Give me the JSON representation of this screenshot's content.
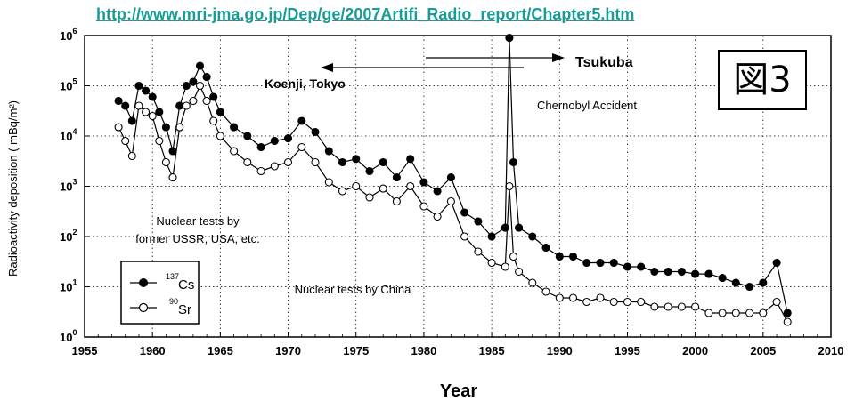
{
  "source_url": "http://www.mri-jma.go.jp/Dep/ge/2007Artifi_Radio_report/Chapter5.htm",
  "figure_label": "図3",
  "chart_data": {
    "type": "line",
    "xlabel": "Year",
    "ylabel": "Radioactivity deposition ( mBq/m²)",
    "xlim": [
      1955,
      2010
    ],
    "ylim": [
      1,
      1000000
    ],
    "y_scale": "log",
    "grid": "dotted",
    "x_ticks": [
      "1955",
      "1960",
      "1965",
      "1970",
      "1975",
      "1980",
      "1985",
      "1990",
      "1995",
      "2000",
      "2005",
      "2010"
    ],
    "y_ticks": [
      {
        "base": "10",
        "exp": "0"
      },
      {
        "base": "10",
        "exp": "1"
      },
      {
        "base": "10",
        "exp": "2"
      },
      {
        "base": "10",
        "exp": "3"
      },
      {
        "base": "10",
        "exp": "4"
      },
      {
        "base": "10",
        "exp": "5"
      },
      {
        "base": "10",
        "exp": "6"
      }
    ],
    "legend": {
      "placement": "bottom-left",
      "entries": [
        {
          "mass": "137",
          "symbol": "Cs",
          "marker": "filled"
        },
        {
          "mass": "90",
          "symbol": "Sr",
          "marker": "open"
        }
      ]
    },
    "annotations": {
      "tsukuba": "Tsukuba",
      "koenji": "Koenji, Tokyo",
      "chernobyl": "Chernobyl Accident",
      "ussr_line1": "Nuclear tests by",
      "ussr_line2": "former USSR, USA, etc.",
      "china": "Nuclear tests by China"
    },
    "series": [
      {
        "name": "137Cs",
        "marker": "filled",
        "x": [
          1957.5,
          1958,
          1958.5,
          1959,
          1959.5,
          1960,
          1960.5,
          1961,
          1961.5,
          1962,
          1962.5,
          1963,
          1963.5,
          1964,
          1964.5,
          1965,
          1966,
          1967,
          1968,
          1969,
          1970,
          1971,
          1972,
          1973,
          1974,
          1975,
          1976,
          1977,
          1978,
          1979,
          1980,
          1981,
          1982,
          1983,
          1984,
          1985,
          1986,
          1986.3,
          1986.6,
          1987,
          1988,
          1989,
          1990,
          1991,
          1992,
          1993,
          1994,
          1995,
          1996,
          1997,
          1998,
          1999,
          2000,
          2001,
          2002,
          2003,
          2004,
          2005,
          2006,
          2006.8
        ],
        "y": [
          50000,
          40000,
          20000,
          100000,
          80000,
          60000,
          30000,
          15000,
          5000,
          40000,
          100000,
          120000,
          250000,
          150000,
          60000,
          30000,
          15000,
          10000,
          6000,
          8000,
          9000,
          20000,
          12000,
          5000,
          3000,
          3500,
          2000,
          3000,
          1500,
          3500,
          1200,
          800,
          1500,
          300,
          200,
          100,
          150,
          900000,
          3000,
          150,
          100,
          60,
          40,
          40,
          30,
          30,
          30,
          25,
          25,
          20,
          20,
          20,
          18,
          18,
          15,
          12,
          10,
          12,
          30,
          3
        ]
      },
      {
        "name": "90Sr",
        "marker": "open",
        "x": [
          1957.5,
          1958,
          1958.5,
          1959,
          1959.5,
          1960,
          1960.5,
          1961,
          1961.5,
          1962,
          1962.5,
          1963,
          1963.5,
          1964,
          1964.5,
          1965,
          1966,
          1967,
          1968,
          1969,
          1970,
          1971,
          1972,
          1973,
          1974,
          1975,
          1976,
          1977,
          1978,
          1979,
          1980,
          1981,
          1982,
          1983,
          1984,
          1985,
          1986,
          1986.3,
          1986.6,
          1987,
          1988,
          1989,
          1990,
          1991,
          1992,
          1993,
          1994,
          1995,
          1996,
          1997,
          1998,
          1999,
          2000,
          2001,
          2002,
          2003,
          2004,
          2005,
          2006,
          2006.8
        ],
        "y": [
          15000,
          8000,
          4000,
          40000,
          30000,
          25000,
          8000,
          3000,
          1500,
          15000,
          40000,
          50000,
          100000,
          50000,
          20000,
          10000,
          5000,
          3000,
          2000,
          2500,
          3000,
          6000,
          3000,
          1200,
          800,
          1000,
          600,
          900,
          500,
          1000,
          400,
          250,
          500,
          100,
          50,
          30,
          25,
          1000,
          40,
          20,
          12,
          8,
          6,
          6,
          5,
          6,
          5,
          5,
          5,
          4,
          4,
          4,
          4,
          3,
          3,
          3,
          3,
          3,
          5,
          2
        ]
      }
    ]
  }
}
